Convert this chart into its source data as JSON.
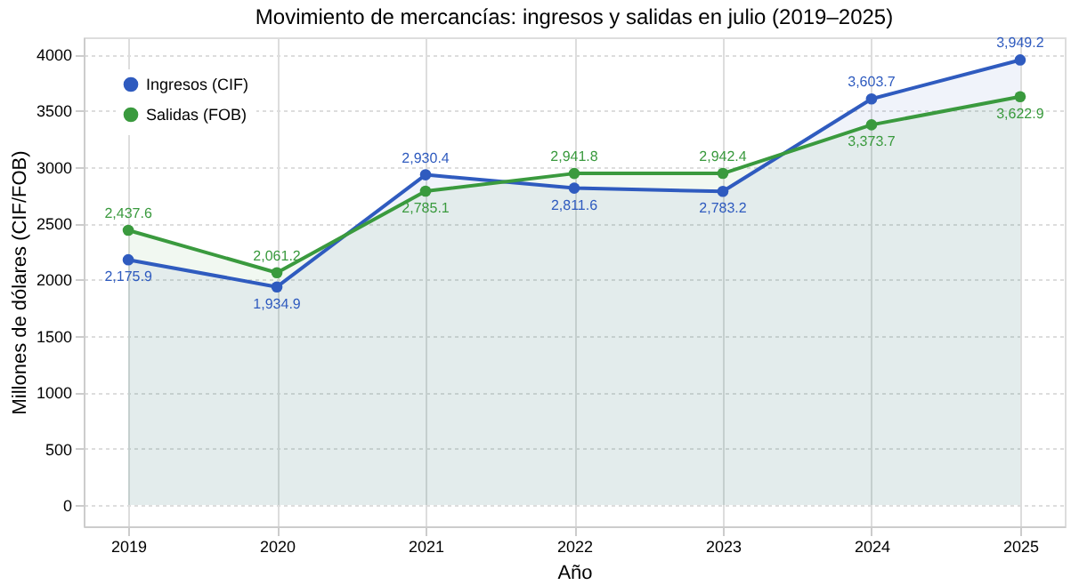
{
  "chart_data": {
    "type": "area",
    "title": "Movimiento de mercancías: ingresos y salidas en julio (2019–2025)",
    "xlabel": "Año",
    "ylabel": "Millones de dólares (CIF/FOB)",
    "x": [
      2019,
      2020,
      2021,
      2022,
      2023,
      2024,
      2025
    ],
    "series": [
      {
        "name": "Ingresos (CIF)",
        "color": "#2f5bbf",
        "values": [
          2175.9,
          1934.9,
          2930.4,
          2811.6,
          2783.2,
          3603.7,
          3949.2
        ],
        "value_labels": [
          "2,175.9",
          "1,934.9",
          "2,930.4",
          "2,811.6",
          "2,783.2",
          "3,603.7",
          "3,949.2"
        ]
      },
      {
        "name": "Salidas (FOB)",
        "color": "#3a9a3e",
        "values": [
          2437.6,
          2061.2,
          2785.1,
          2941.8,
          2942.4,
          3373.7,
          3622.9
        ],
        "value_labels": [
          "2,437.6",
          "2,061.2",
          "2,785.1",
          "2,941.8",
          "2,942.4",
          "3,373.7",
          "3,622.9"
        ]
      }
    ],
    "xlim": [
      2018.7,
      2025.3
    ],
    "xticks": [
      2019,
      2020,
      2021,
      2022,
      2023,
      2024,
      2025
    ],
    "ylim": [
      -190,
      4150
    ],
    "yticks": [
      0,
      500,
      1000,
      1500,
      2000,
      2500,
      3000,
      3500,
      4000
    ],
    "grid": true,
    "legend": "top left",
    "marker": "circle",
    "line_style": "solid"
  }
}
